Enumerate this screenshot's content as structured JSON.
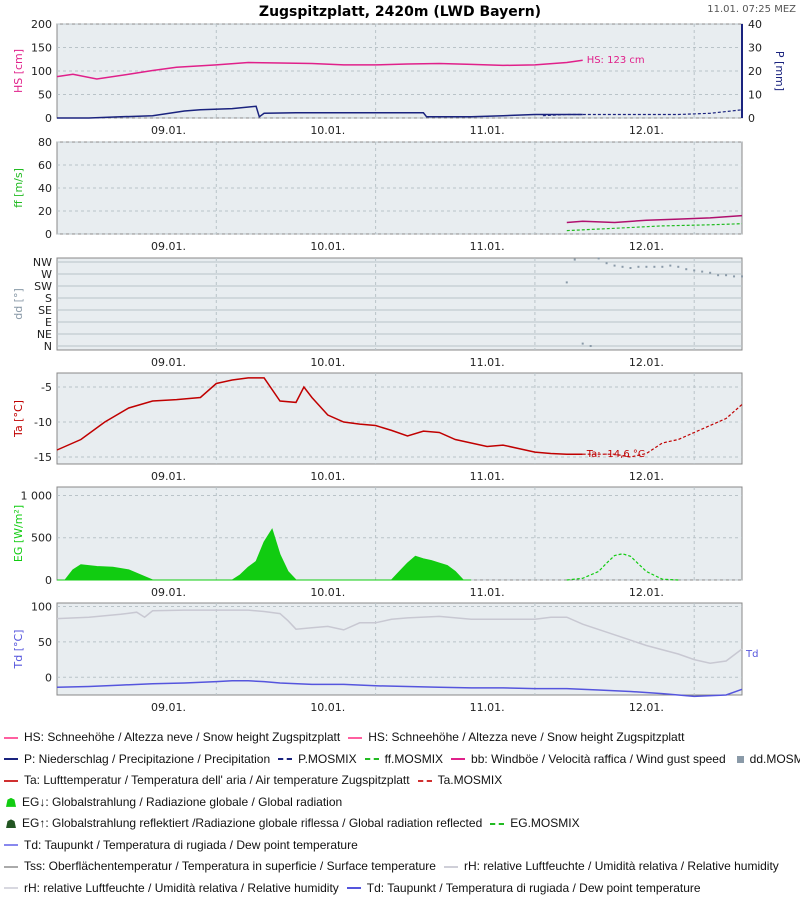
{
  "header": {
    "title": "Zugspitzplatt, 2420m (LWD Bayern)",
    "timestamp": "11.01. 07:25 MEZ"
  },
  "colors": {
    "panel_bg": "#e8edf0",
    "grid": "#b9c3c8",
    "hs": "#e0208a",
    "precip": "#1a237e",
    "wind_gust": "#b0106e",
    "wind_mosmix": "#22bb22",
    "dd": "#8a9aa8",
    "temp": "#c00000",
    "radiation": "#11cc11",
    "rh": "#c8c8d2",
    "dewpoint": "#5555dd"
  },
  "chart_data": [
    {
      "id": "hs_precip",
      "type": "line",
      "ylabel": "HS [cm]",
      "ylabel_right": "P [mm]",
      "ylim": [
        0,
        200
      ],
      "yticks": [
        "0",
        "50",
        "100",
        "150",
        "200"
      ],
      "ylim_right": [
        0,
        40
      ],
      "yticks_right": [
        "0",
        "10",
        "20",
        "30",
        "40"
      ],
      "x_ticks": [
        "09.01.",
        "10.01.",
        "11.01.",
        "12.01."
      ],
      "annotation": "HS: 123 cm",
      "series": [
        {
          "key": "HS",
          "color": "hs",
          "x": [
            0,
            0.1,
            0.25,
            0.45,
            0.6,
            0.75,
            1.0,
            1.2,
            1.4,
            1.6,
            1.8,
            2.0,
            2.2,
            2.4,
            2.6,
            2.8,
            3.0,
            3.2,
            3.3
          ],
          "y": [
            88,
            93,
            83,
            93,
            101,
            108,
            113,
            118,
            117,
            116,
            113,
            113,
            115,
            116,
            114,
            112,
            113,
            118,
            123
          ]
        },
        {
          "key": "P",
          "color": "precip",
          "x": [
            0,
            0.2,
            0.4,
            0.6,
            0.8,
            0.9,
            1.1,
            1.25,
            1.27,
            1.3,
            1.5,
            2.0,
            2.3,
            2.32,
            2.6,
            2.8,
            3.0,
            3.05,
            3.3
          ],
          "y": [
            0,
            0,
            0.5,
            1,
            3,
            3.5,
            4,
            5,
            0.5,
            2,
            2.2,
            2.2,
            2.2,
            0.5,
            0.5,
            1,
            1.5,
            1.5,
            1.5
          ],
          "axis": "right"
        },
        {
          "key": "P.MOSMIX",
          "color": "precip",
          "dashed": true,
          "x": [
            3.05,
            3.2,
            3.4,
            3.6,
            3.9,
            4.1,
            4.3
          ],
          "y": [
            1,
            1.5,
            1.5,
            1.5,
            1.5,
            2,
            3.5
          ],
          "axis": "right"
        }
      ]
    },
    {
      "id": "wind",
      "type": "line",
      "ylabel": "ff [m/s]",
      "ylim": [
        0,
        80
      ],
      "yticks": [
        "0",
        "20",
        "40",
        "60",
        "80"
      ],
      "x_ticks": [
        "09.01.",
        "10.01.",
        "11.01.",
        "12.01."
      ],
      "series": [
        {
          "key": "bb",
          "color": "wind_gust",
          "x": [
            3.2,
            3.3,
            3.5,
            3.7,
            3.9,
            4.1,
            4.3
          ],
          "y": [
            10,
            11,
            10,
            12,
            13,
            14,
            16
          ]
        },
        {
          "key": "ff.MOSMIX",
          "color": "wind_mosmix",
          "dashed": true,
          "x": [
            3.2,
            3.5,
            3.8,
            4.1,
            4.3
          ],
          "y": [
            3,
            5,
            7,
            8,
            9
          ]
        }
      ]
    },
    {
      "id": "direction",
      "type": "scatter",
      "ylabel": "dd [°]",
      "yticks": [
        "N",
        "NE",
        "E",
        "SE",
        "S",
        "SW",
        "W",
        "NW"
      ],
      "x_ticks": [
        "09.01.",
        "10.01.",
        "11.01.",
        "12.01."
      ],
      "series": [
        {
          "key": "dd.MOSMIX",
          "color": "dd",
          "x": [
            3.2,
            3.25,
            3.3,
            3.35,
            3.4,
            3.45,
            3.5,
            3.55,
            3.6,
            3.65,
            3.7,
            3.75,
            3.8,
            3.85,
            3.9,
            3.95,
            4.0,
            4.05,
            4.1,
            4.15,
            4.2,
            4.25,
            4.3
          ],
          "y": [
            5.3,
            7.2,
            0.2,
            0.0,
            7.3,
            6.9,
            6.7,
            6.6,
            6.5,
            6.6,
            6.6,
            6.6,
            6.6,
            6.7,
            6.6,
            6.4,
            6.3,
            6.2,
            6.1,
            5.9,
            5.9,
            5.8,
            5.8
          ]
        }
      ]
    },
    {
      "id": "temperature",
      "type": "line",
      "ylabel": "Ta [°C]",
      "ylim": [
        -16,
        -3
      ],
      "yticks": [
        "-15",
        "-10",
        "-5"
      ],
      "x_ticks": [
        "09.01.",
        "10.01.",
        "11.01.",
        "12.01."
      ],
      "annotation": "Ta: -14,6 °C",
      "series": [
        {
          "key": "Ta",
          "color": "temp",
          "x": [
            0,
            0.15,
            0.3,
            0.45,
            0.6,
            0.75,
            0.9,
            1.0,
            1.1,
            1.2,
            1.3,
            1.4,
            1.5,
            1.55,
            1.6,
            1.7,
            1.8,
            1.9,
            2.0,
            2.1,
            2.2,
            2.3,
            2.4,
            2.5,
            2.6,
            2.7,
            2.8,
            2.9,
            3.0,
            3.1,
            3.2,
            3.3
          ],
          "y": [
            -14,
            -12.5,
            -10,
            -8,
            -7,
            -6.8,
            -6.5,
            -4.5,
            -4,
            -3.7,
            -3.7,
            -7,
            -7.2,
            -5,
            -6.5,
            -9,
            -10,
            -10.3,
            -10.5,
            -11.2,
            -12,
            -11.3,
            -11.5,
            -12.5,
            -13,
            -13.5,
            -13.3,
            -13.8,
            -14.3,
            -14.5,
            -14.6,
            -14.6
          ]
        },
        {
          "key": "Ta.MOSMIX",
          "color": "temp",
          "dashed": true,
          "x": [
            3.3,
            3.5,
            3.6,
            3.7,
            3.8,
            3.9,
            4.0,
            4.1,
            4.2,
            4.3
          ],
          "y": [
            -14.6,
            -14.6,
            -15,
            -14.5,
            -13,
            -12.5,
            -11.5,
            -10.5,
            -9.5,
            -7.5
          ]
        }
      ]
    },
    {
      "id": "radiation",
      "type": "area",
      "ylabel": "EG [W/m²]",
      "ylim": [
        0,
        1100
      ],
      "yticks": [
        "0",
        "500",
        "1 000"
      ],
      "x_ticks": [
        "09.01.",
        "10.01.",
        "11.01.",
        "12.01."
      ],
      "series": [
        {
          "key": "EG",
          "color": "radiation",
          "x": [
            0,
            0.05,
            0.1,
            0.15,
            0.25,
            0.35,
            0.45,
            0.55,
            0.6,
            1.05,
            1.1,
            1.15,
            1.2,
            1.25,
            1.3,
            1.35,
            1.4,
            1.45,
            1.5,
            1.55,
            1.6,
            1.65,
            1.7,
            2.05,
            2.1,
            2.15,
            2.2,
            2.25,
            2.3,
            2.35,
            2.4,
            2.45,
            2.5,
            2.55,
            2.6
          ],
          "y": [
            0,
            0,
            120,
            180,
            160,
            150,
            120,
            40,
            0,
            0,
            0,
            60,
            150,
            220,
            450,
            600,
            300,
            100,
            0,
            0,
            0,
            0,
            0,
            0,
            0,
            100,
            200,
            280,
            250,
            230,
            200,
            170,
            100,
            0,
            0
          ]
        },
        {
          "key": "EG.MOSMIX",
          "color": "radiation",
          "dashed": true,
          "x": [
            3.2,
            3.3,
            3.4,
            3.45,
            3.5,
            3.55,
            3.6,
            3.7,
            3.8,
            3.9
          ],
          "y": [
            0,
            20,
            100,
            200,
            290,
            310,
            280,
            100,
            10,
            0
          ]
        }
      ]
    },
    {
      "id": "dewpoint_rh",
      "type": "line",
      "ylabel": "Td [°C]",
      "ylim": [
        -25,
        105
      ],
      "yticks": [
        "0",
        "50",
        "100"
      ],
      "x_ticks": [
        "09.01.",
        "10.01.",
        "11.01.",
        "12.01."
      ],
      "annotation": "Td",
      "series": [
        {
          "key": "rH",
          "color": "rh",
          "x": [
            0,
            0.2,
            0.4,
            0.5,
            0.55,
            0.6,
            0.8,
            1.0,
            1.2,
            1.3,
            1.4,
            1.45,
            1.5,
            1.6,
            1.7,
            1.8,
            1.9,
            2.0,
            2.1,
            2.2,
            2.4,
            2.6,
            2.8,
            3.0,
            3.1,
            3.2,
            3.3,
            3.5,
            3.7,
            3.9,
            4.0,
            4.1,
            4.2,
            4.3
          ],
          "y": [
            83,
            85,
            89,
            92,
            85,
            94,
            95,
            95,
            95,
            93,
            90,
            80,
            68,
            70,
            72,
            67,
            77,
            77,
            82,
            84,
            86,
            82,
            82,
            82,
            85,
            85,
            75,
            60,
            45,
            33,
            25,
            20,
            23,
            40
          ]
        },
        {
          "key": "Td",
          "color": "dewpoint",
          "x": [
            0,
            0.2,
            0.4,
            0.6,
            0.8,
            1.0,
            1.1,
            1.2,
            1.3,
            1.4,
            1.6,
            1.8,
            2.0,
            2.2,
            2.4,
            2.6,
            2.8,
            3.0,
            3.2,
            3.4,
            3.6,
            3.8,
            4.0,
            4.2,
            4.3
          ],
          "y": [
            -14,
            -13,
            -11,
            -9,
            -8,
            -6,
            -5,
            -5,
            -6,
            -8,
            -10,
            -10,
            -12,
            -13,
            -14,
            -15,
            -15,
            -16,
            -16,
            -18,
            -20,
            -23,
            -27,
            -25,
            -17
          ]
        }
      ]
    }
  ],
  "legend": {
    "rows": [
      [
        {
          "text": "HS: Schneehöhe / Altezza neve / Snow height  Zugspitzplatt",
          "color": "#ff5fa0",
          "symbol": "solid"
        },
        {
          "text": "HS: Schneehöhe / Altezza neve / Snow height  Zugspitzplatt",
          "color": "#ff5fa0",
          "symbol": "solid"
        }
      ],
      [
        {
          "text": "P: Niederschlag / Precipitazione / Precipitation",
          "color": "#1a237e",
          "symbol": "solid"
        },
        {
          "text": "P.MOSMIX",
          "color": "#1a237e",
          "symbol": "dashed"
        },
        {
          "text": "ff.MOSMIX",
          "color": "#22bb22",
          "symbol": "dashed"
        },
        {
          "text": "bb: Windböe / Velocità raffica / Wind gust speed",
          "color": "#e0208a",
          "symbol": "solid"
        },
        {
          "text": "dd.MOSMIX",
          "color": "#8a9aa8",
          "symbol": "square"
        }
      ],
      [
        {
          "text": "Ta: Lufttemperatur / Temperatura dell' aria / Air temperature  Zugspitzplatt",
          "color": "#d03030",
          "symbol": "solid"
        },
        {
          "text": "Ta.MOSMIX",
          "color": "#d03030",
          "symbol": "dashed"
        }
      ],
      [
        {
          "text": "EG↓: Globalstrahlung / Radiazione globale / Global radiation",
          "color": "#11cc11",
          "symbol": "area"
        }
      ],
      [
        {
          "text": "EG↑: Globalstrahlung reflektiert /Radiazione globale riflessa / Global radiation reflected",
          "color": "#225522",
          "symbol": "area"
        },
        {
          "text": "EG.MOSMIX",
          "color": "#22bb22",
          "symbol": "dashed"
        }
      ],
      [
        {
          "text": "Td: Taupunkt / Temperatura di rugiada / Dew point temperature",
          "color": "#8888ee",
          "symbol": "solid"
        }
      ],
      [
        {
          "text": "Tss: Oberflächentemperatur / Temperatura in superficie / Surface temperature",
          "color": "#aaaaaa",
          "symbol": "solid"
        },
        {
          "text": "rH: relative Luftfeuchte / Umidità relativa / Relative humidity",
          "color": "#cfcfd8",
          "symbol": "solid"
        }
      ],
      [
        {
          "text": "rH: relative Luftfeuchte / Umidità relativa / Relative humidity",
          "color": "#d8d8e0",
          "symbol": "solid"
        },
        {
          "text": "Td: Taupunkt / Temperatura di rugiada / Dew point temperature",
          "color": "#5555dd",
          "symbol": "solid"
        }
      ]
    ]
  }
}
